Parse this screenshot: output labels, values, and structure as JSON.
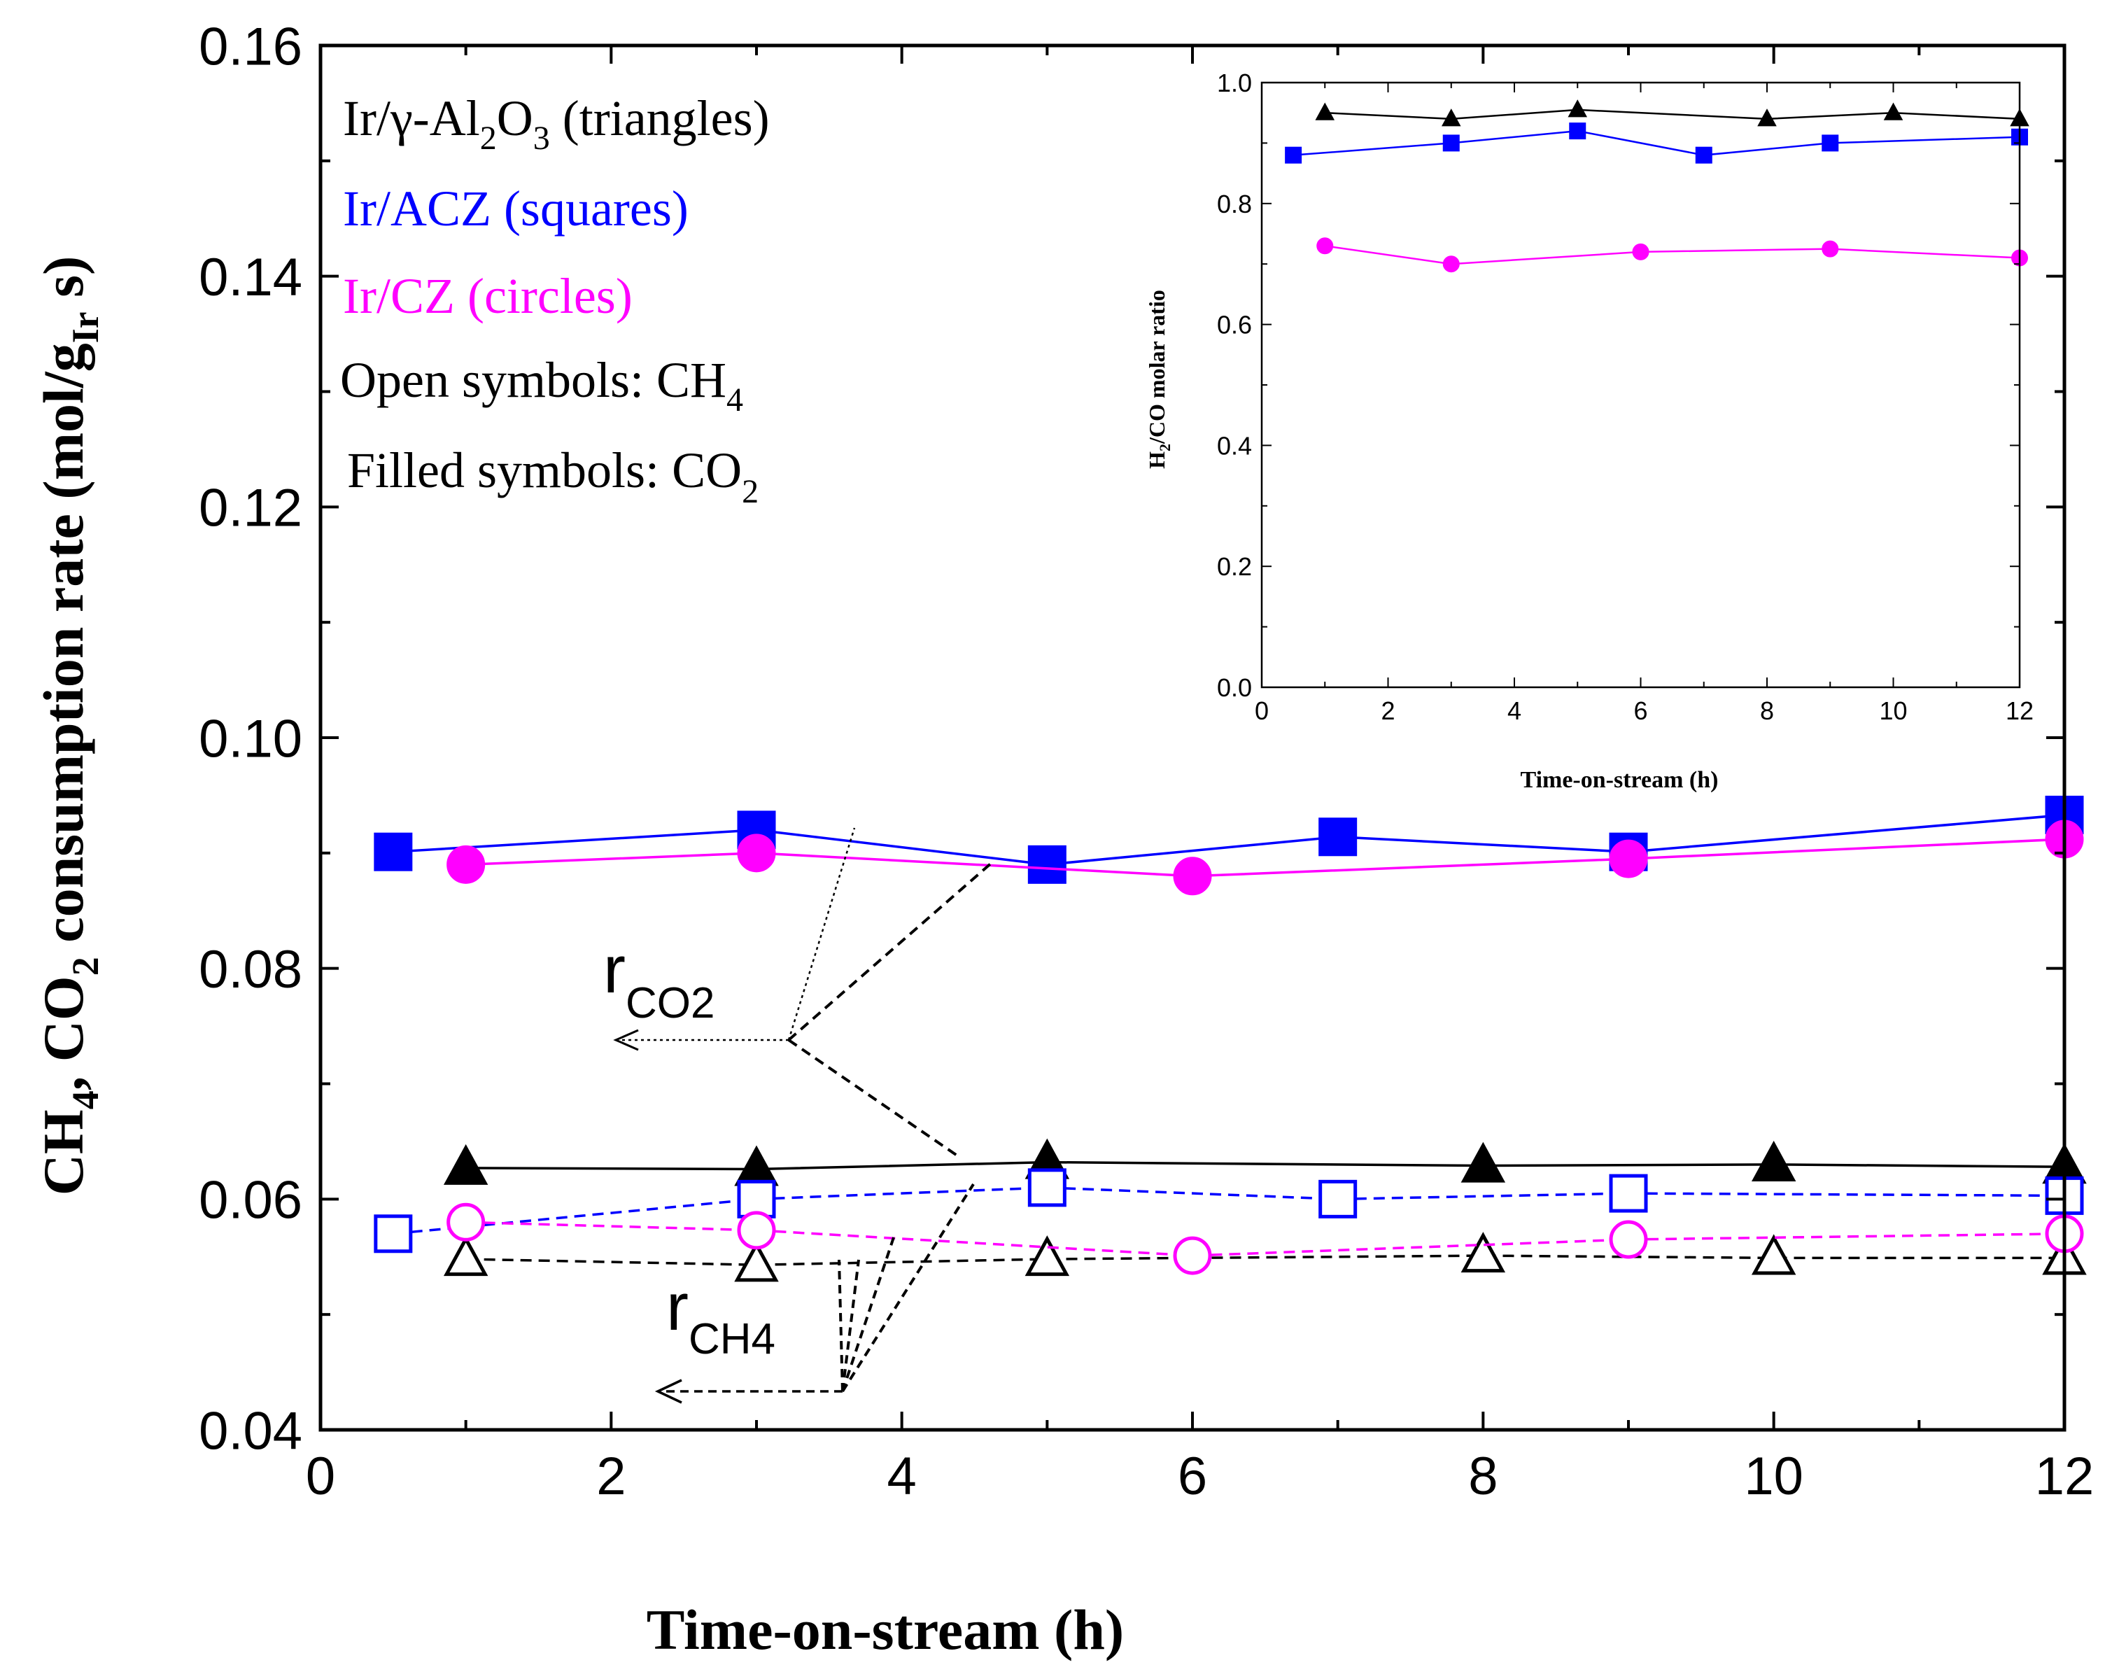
{
  "colors": {
    "triangles": "#000000",
    "squares": "#0000ff",
    "circles": "#ff00ff",
    "axis": "#000000"
  },
  "chart_data": [
    {
      "id": "main",
      "type": "line",
      "xlabel": "Time-on-stream (h)",
      "ylabel": {
        "full": "CH4, CO2 consumption rate (mol/gIr s)",
        "part1": "CH",
        "sub1": "4",
        "part2": ", CO",
        "sub2": "2",
        "part3": " consumption rate (mol/g",
        "sub3": "Ir",
        "part4": " s)"
      },
      "xlim": [
        0,
        12
      ],
      "ylim": [
        0.04,
        0.16
      ],
      "x_ticks": [
        0,
        2,
        4,
        6,
        8,
        10,
        12
      ],
      "x_tick_labels": [
        "0",
        "2",
        "4",
        "6",
        "8",
        "10",
        "12"
      ],
      "y_ticks": [
        0.04,
        0.06,
        0.08,
        0.1,
        0.12,
        0.14,
        0.16
      ],
      "y_tick_labels": [
        "0.04",
        "0.06",
        "0.08",
        "0.10",
        "0.12",
        "0.14",
        "0.16"
      ],
      "legend_text": {
        "line1": {
          "a": "Ir/γ-Al",
          "sub1": "2",
          "b": "O",
          "sub2": "3",
          "c": " (triangles)"
        },
        "line2": "Ir/ACZ (squares)",
        "line3": "Ir/CZ (circles)",
        "line4": {
          "a": "Open symbols: CH",
          "sub": "4"
        },
        "line5": {
          "a": "Filled symbols: CO",
          "sub": "2"
        }
      },
      "annotations": {
        "rco2": {
          "r": "r",
          "sub": "CO2"
        },
        "rch4": {
          "r": "r",
          "sub": "CH4"
        }
      },
      "series": [
        {
          "name": "Ir/γ-Al2O3 CO2",
          "marker": "triangle",
          "filled": true,
          "color": "#000000",
          "dash": false,
          "x": [
            1,
            3,
            5,
            8,
            10,
            12
          ],
          "y": [
            0.0627,
            0.0626,
            0.0632,
            0.0629,
            0.063,
            0.0628
          ]
        },
        {
          "name": "Ir/ACZ CO2",
          "marker": "square",
          "filled": true,
          "color": "#0000ff",
          "dash": false,
          "x": [
            0.5,
            3,
            5,
            7,
            9,
            12
          ],
          "y": [
            0.0901,
            0.092,
            0.089,
            0.0914,
            0.0901,
            0.0933
          ]
        },
        {
          "name": "Ir/CZ CO2",
          "marker": "circle",
          "filled": true,
          "color": "#ff00ff",
          "dash": false,
          "x": [
            1,
            3,
            6,
            9,
            12
          ],
          "y": [
            0.089,
            0.09,
            0.088,
            0.0895,
            0.0912
          ]
        },
        {
          "name": "Ir/γ-Al2O3 CH4",
          "marker": "triangle",
          "filled": false,
          "color": "#000000",
          "dash": true,
          "x": [
            1,
            3,
            5,
            8,
            10,
            12
          ],
          "y": [
            0.0548,
            0.0543,
            0.0548,
            0.0551,
            0.0549,
            0.0549
          ]
        },
        {
          "name": "Ir/ACZ CH4",
          "marker": "square",
          "filled": false,
          "color": "#0000ff",
          "dash": true,
          "x": [
            0.5,
            3,
            5,
            7,
            9,
            12
          ],
          "y": [
            0.057,
            0.06,
            0.061,
            0.06,
            0.0605,
            0.0603
          ]
        },
        {
          "name": "Ir/CZ CH4",
          "marker": "circle",
          "filled": false,
          "color": "#ff00ff",
          "dash": true,
          "x": [
            1,
            3,
            6,
            9,
            12
          ],
          "y": [
            0.058,
            0.0573,
            0.0551,
            0.0565,
            0.057
          ]
        }
      ]
    },
    {
      "id": "inset",
      "type": "line",
      "xlabel": "Time-on-stream (h)",
      "ylabel": {
        "full": "H2/CO molar ratio",
        "a": "H",
        "sub": "2",
        "b": "/CO molar ratio"
      },
      "xlim": [
        0,
        12
      ],
      "ylim": [
        0.0,
        1.0
      ],
      "x_ticks": [
        0,
        2,
        4,
        6,
        8,
        10,
        12
      ],
      "x_tick_labels": [
        "0",
        "2",
        "4",
        "6",
        "8",
        "10",
        "12"
      ],
      "y_ticks": [
        0.0,
        0.2,
        0.4,
        0.6,
        0.8,
        1.0
      ],
      "y_tick_labels": [
        "0.0",
        "0.2",
        "0.4",
        "0.6",
        "0.8",
        "1.0"
      ],
      "series": [
        {
          "name": "Ir/γ-Al2O3",
          "marker": "triangle",
          "filled": true,
          "color": "#000000",
          "x": [
            1,
            3,
            5,
            8,
            10,
            12
          ],
          "y": [
            0.95,
            0.94,
            0.955,
            0.94,
            0.95,
            0.94
          ]
        },
        {
          "name": "Ir/ACZ",
          "marker": "square",
          "filled": true,
          "color": "#0000ff",
          "x": [
            0.5,
            3,
            5,
            7,
            9,
            12
          ],
          "y": [
            0.88,
            0.9,
            0.92,
            0.88,
            0.9,
            0.91
          ]
        },
        {
          "name": "Ir/CZ",
          "marker": "circle",
          "filled": true,
          "color": "#ff00ff",
          "x": [
            1,
            3,
            6,
            9,
            12
          ],
          "y": [
            0.73,
            0.7,
            0.72,
            0.725,
            0.71
          ]
        }
      ]
    }
  ]
}
